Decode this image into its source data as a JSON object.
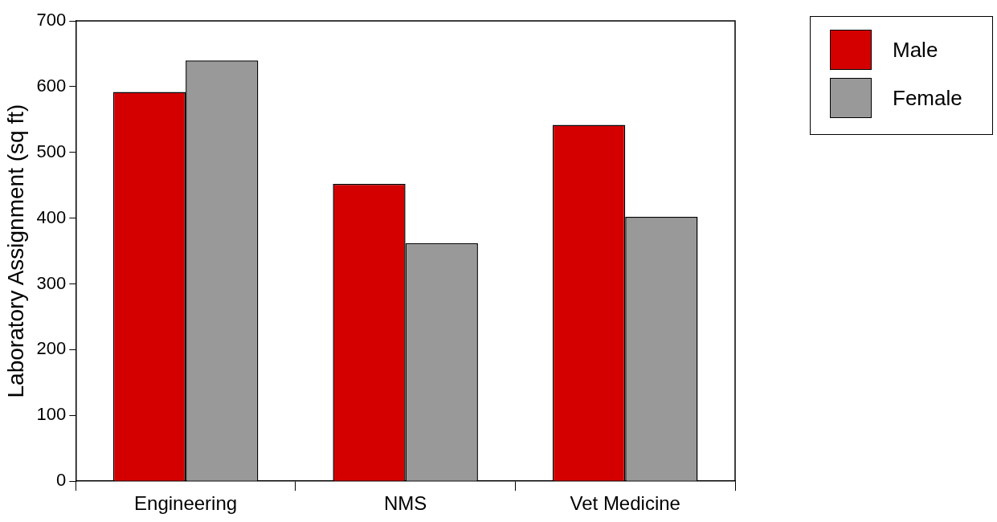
{
  "chart_data": {
    "type": "bar",
    "ylabel": "Laboratory Assignment (sq ft)",
    "categories": [
      "Engineering",
      "NMS",
      "Vet Medicine"
    ],
    "series": [
      {
        "name": "Male",
        "color": "#d40000",
        "values": [
          592,
          452,
          542
        ]
      },
      {
        "name": "Female",
        "color": "#999999",
        "values": [
          640,
          362,
          402
        ]
      }
    ],
    "ylim": [
      0,
      700
    ],
    "yticks": [
      0,
      100,
      200,
      300,
      400,
      500,
      600,
      700
    ],
    "grid": false,
    "legend": "top right"
  }
}
